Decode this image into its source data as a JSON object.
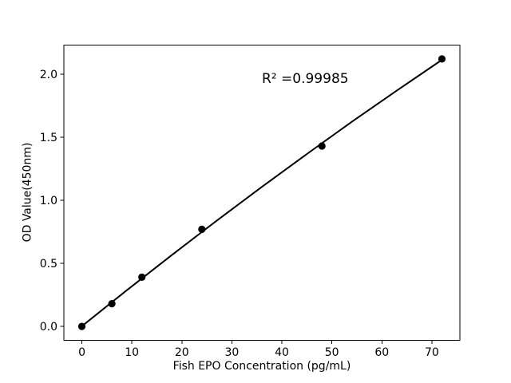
{
  "figure": {
    "background": "#ffffff"
  },
  "chart_data": {
    "type": "scatter",
    "title": "",
    "xlabel": "Fish EPO Concentration (pg/mL)",
    "ylabel": "OD Value(450nm)",
    "annotation": "R² =0.99985",
    "annotation_xy": [
      36,
      1.91
    ],
    "x": [
      0,
      6,
      12,
      24,
      48,
      72
    ],
    "y": [
      0.0,
      0.18,
      0.39,
      0.77,
      1.43,
      2.12
    ],
    "fit_line": {
      "x": [
        0,
        9,
        18,
        27,
        36,
        45,
        54,
        63,
        72
      ],
      "y": [
        0.002,
        0.287,
        0.566,
        0.839,
        1.106,
        1.367,
        1.622,
        1.87,
        2.113
      ]
    },
    "xlim": [
      -3.6,
      75.6
    ],
    "ylim": [
      -0.11,
      2.23
    ],
    "xticks": {
      "values": [
        0,
        10,
        20,
        30,
        40,
        50,
        60,
        70
      ],
      "labels": [
        "0",
        "10",
        "20",
        "30",
        "40",
        "50",
        "60",
        "70"
      ]
    },
    "yticks": {
      "values": [
        0.0,
        0.5,
        1.0,
        1.5,
        2.0
      ],
      "labels": [
        "0.0",
        "0.5",
        "1.0",
        "1.5",
        "2.0"
      ]
    },
    "grid": false,
    "legend": null,
    "colors": {
      "marker": "#000000",
      "line": "#000000",
      "spine": "#000000",
      "text": "#000000",
      "background": "#ffffff"
    }
  }
}
